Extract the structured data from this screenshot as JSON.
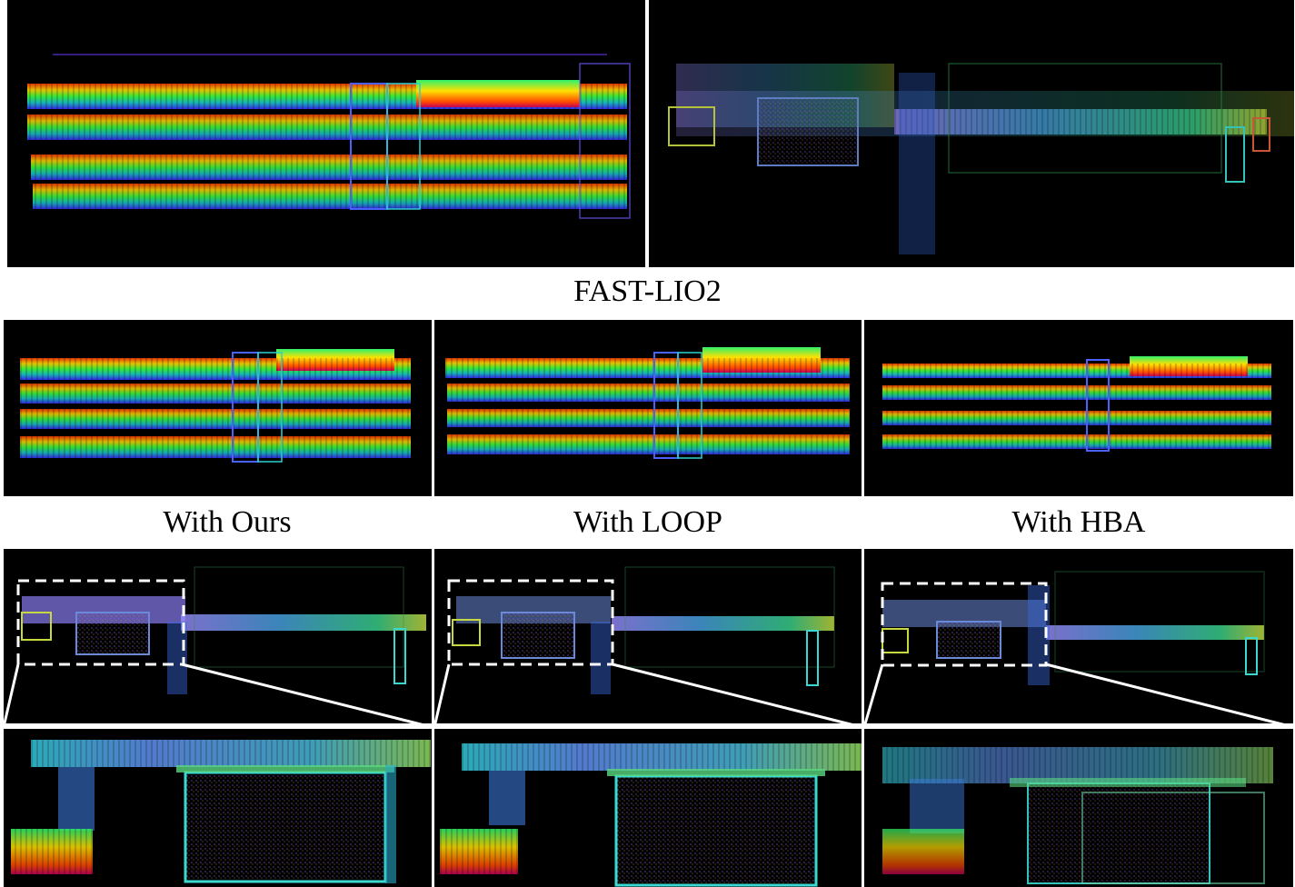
{
  "captions": {
    "row1": "FAST-LIO2",
    "ours": "With Ours",
    "loop": "With LOOP",
    "hba": "With HBA"
  },
  "colors": {
    "background": "#000000",
    "divider": "#ffffff",
    "zoom_box": "#ffffff"
  },
  "panels": [
    {
      "id": "fastlio2-corridor",
      "content": "point-cloud-map-four-corridors"
    },
    {
      "id": "fastlio2-building",
      "content": "point-cloud-map-building-top-view"
    },
    {
      "id": "ours-corridor",
      "content": "point-cloud-map-four-corridors"
    },
    {
      "id": "loop-corridor",
      "content": "point-cloud-map-four-corridors"
    },
    {
      "id": "hba-corridor",
      "content": "point-cloud-map-four-corridors"
    },
    {
      "id": "ours-building",
      "content": "point-cloud-map-building-top-view"
    },
    {
      "id": "loop-building",
      "content": "point-cloud-map-building-top-view"
    },
    {
      "id": "hba-building",
      "content": "point-cloud-map-building-top-view"
    },
    {
      "id": "ours-zoom",
      "content": "point-cloud-zoom-detail"
    },
    {
      "id": "loop-zoom",
      "content": "point-cloud-zoom-detail"
    },
    {
      "id": "hba-zoom",
      "content": "point-cloud-zoom-detail"
    }
  ]
}
